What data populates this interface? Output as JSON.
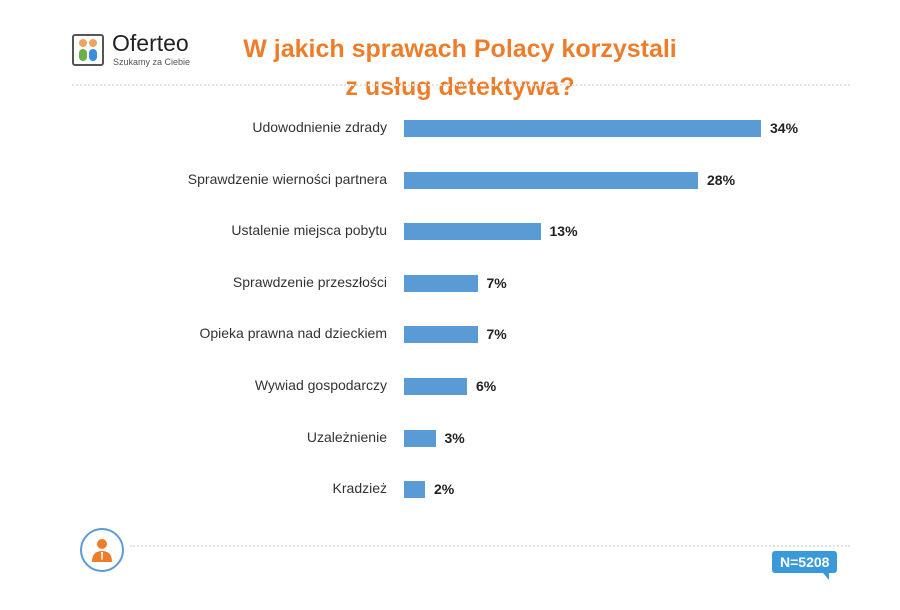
{
  "brand": {
    "name": "Oferteo",
    "tagline": "Szukamy za Ciebie"
  },
  "footer": {
    "sample": "N=5208"
  },
  "colors": {
    "bar": "#5b9bd5",
    "title": "#ee7d2b"
  },
  "chart_data": {
    "type": "bar",
    "orientation": "horizontal",
    "title": "W jakich sprawach Polacy korzystali z usług detektywa?",
    "title_lines": [
      "W jakich sprawach Polacy korzystali",
      "z usług detektywa?"
    ],
    "categories": [
      "Udowodnienie zdrady",
      "Sprawdzenie wierności partnera",
      "Ustalenie miejsca pobytu",
      "Sprawdzenie przeszłości",
      "Opieka prawna nad dzieckiem",
      "Wywiad gospodarczy",
      "Uzależnienie",
      "Kradzież"
    ],
    "values": [
      34,
      28,
      13,
      7,
      7,
      6,
      3,
      2
    ],
    "value_labels": [
      "34%",
      "28%",
      "13%",
      "7%",
      "7%",
      "6%",
      "3%",
      "2%"
    ],
    "unit": "%",
    "xlabel": "",
    "ylabel": "",
    "grid": false
  }
}
